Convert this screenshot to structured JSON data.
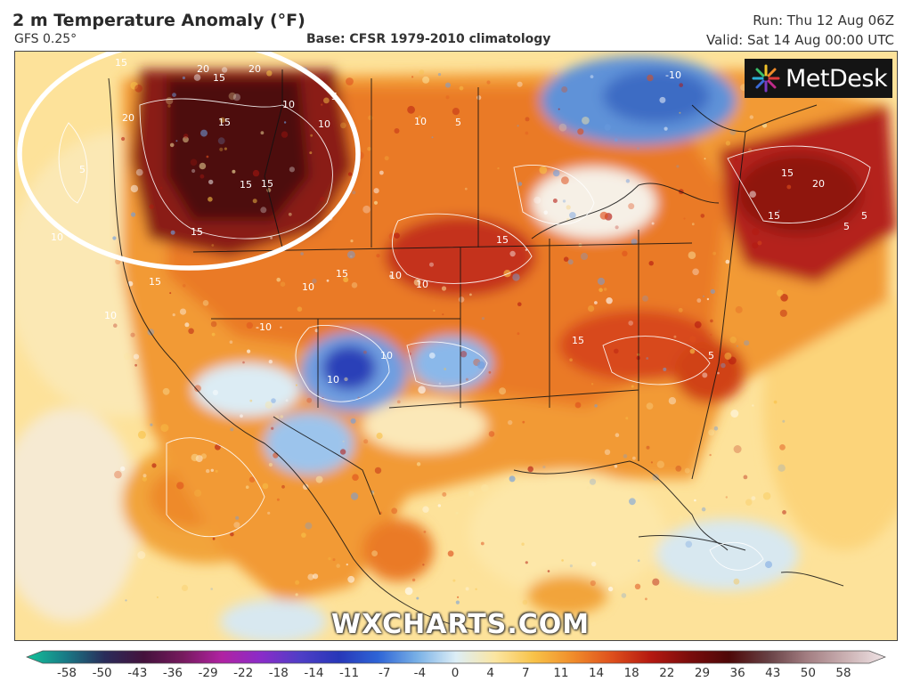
{
  "header": {
    "title": "2 m Temperature Anomaly (°F)",
    "model": "GFS 0.25°",
    "base": "Base: CFSR 1979-2010 climatology",
    "run": "Run: Thu 12 Aug 06Z",
    "valid": "Valid: Sat 14 Aug 00:00 UTC"
  },
  "logo": {
    "text": "MetDesk",
    "icon": "metdesk-starburst-icon"
  },
  "watermark": "WXCHARTS.COM",
  "contour_labels": [
    "15",
    "20",
    "15",
    "20",
    "15",
    "5",
    "10",
    "5",
    "10",
    "15",
    "15",
    "15",
    "10",
    "10",
    "5",
    "-10",
    "15",
    "15",
    "20",
    "5",
    "5",
    "15",
    "10",
    "15",
    "5",
    "10",
    "10",
    "10",
    "-10",
    "10",
    "20",
    "15",
    "10",
    "15",
    "5"
  ],
  "colorbar": {
    "ticks": [
      "-58",
      "-50",
      "-43",
      "-36",
      "-29",
      "-22",
      "-18",
      "-14",
      "-11",
      "-7",
      "-4",
      "0",
      "4",
      "7",
      "11",
      "14",
      "18",
      "22",
      "29",
      "36",
      "43",
      "50",
      "58"
    ],
    "colors": [
      "#13c39a",
      "#187a86",
      "#2a2c5a",
      "#44123c",
      "#761a5e",
      "#b022a2",
      "#8a2cc8",
      "#4f3ec6",
      "#2737b8",
      "#2e64d6",
      "#78b0e6",
      "#ddeef6",
      "#fbe6a2",
      "#f8c248",
      "#f08c2a",
      "#de4f1c",
      "#b41810",
      "#7a0c0c",
      "#4e0808",
      "#674044",
      "#a37e82",
      "#cbb1b3",
      "#f0e4e6"
    ]
  },
  "colors": {
    "highlight_circle": "#ffffff",
    "border": "#111111",
    "ocean": "#fde29a"
  }
}
